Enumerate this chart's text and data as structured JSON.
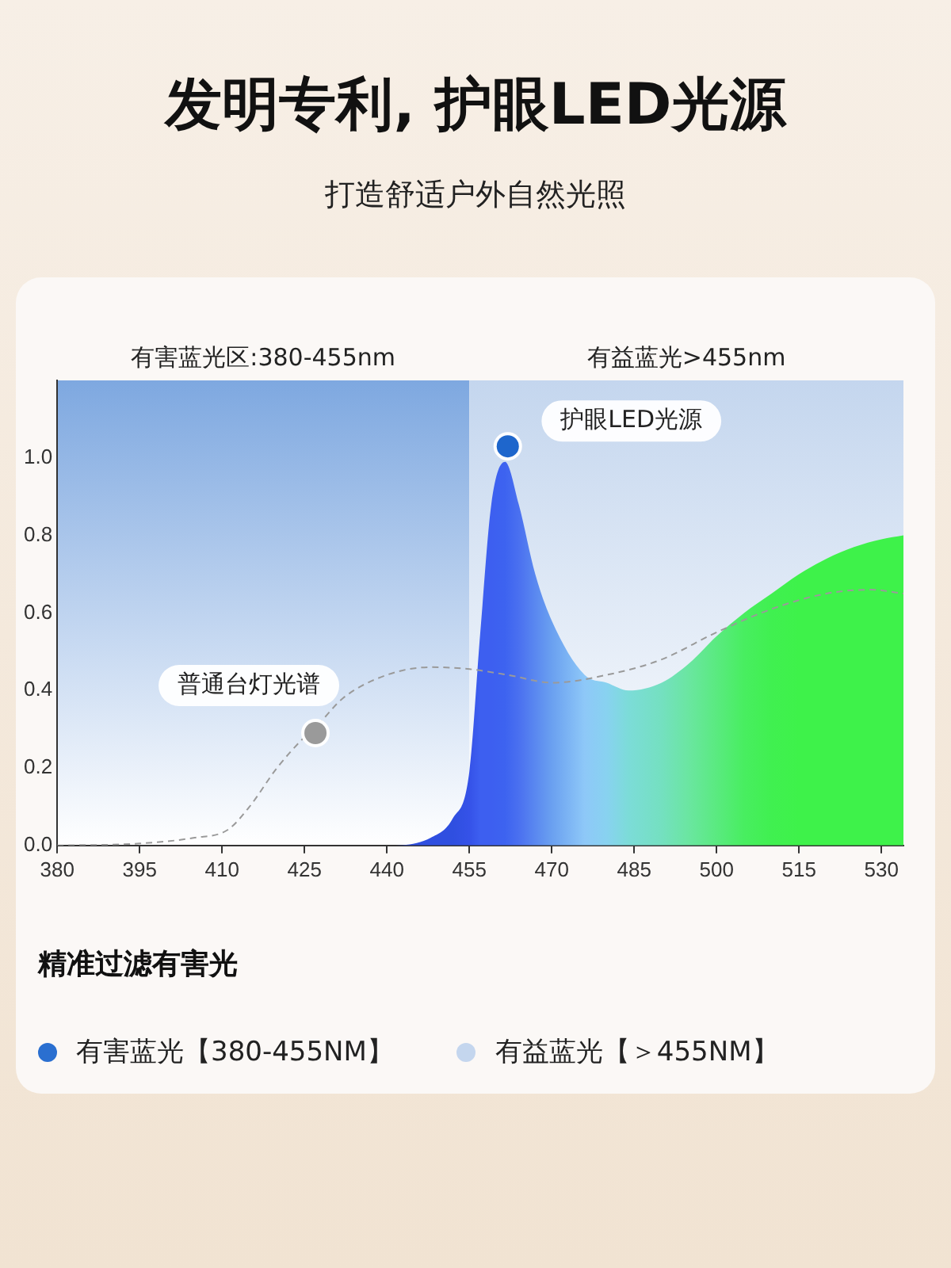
{
  "chart_data": {
    "type": "line",
    "title": "发明专利, 护眼LED光源",
    "subtitle": "打造舒适户外自然光照",
    "annotations": [
      {
        "text": "护眼LED光源",
        "x": 462,
        "y": 1.03
      },
      {
        "text": "普通台灯光谱",
        "x": 427,
        "y": 0.29
      },
      "精准过滤有害光",
      "有害蓝光【380-455NM】",
      "有益蓝光【＞455NM】"
    ],
    "series": [
      {
        "type": "area",
        "x": [
          380,
          440,
          448,
          452,
          455,
          457,
          459,
          461.5,
          464,
          467,
          470,
          476,
          480,
          484,
          490,
          495,
          500,
          505,
          510,
          515,
          520,
          525,
          530,
          534
        ],
        "values": [
          0,
          0,
          0.02,
          0.07,
          0.19,
          0.55,
          0.88,
          0.99,
          0.88,
          0.7,
          0.58,
          0.44,
          0.42,
          0.4,
          0.42,
          0.47,
          0.54,
          0.6,
          0.65,
          0.7,
          0.74,
          0.77,
          0.79,
          0.8
        ],
        "colors": [
          "#2f4fe0",
          "#2f4fe0",
          "#2f4fe0",
          "#2f4fe0",
          "#3552e8",
          "#3d5ff0",
          "#3d5ff0",
          "#3d63f0",
          "#4a70f0",
          "#5a88f0",
          "#6aa0f0",
          "#8ec8f8",
          "#88d2f0",
          "#7cdcd8",
          "#74e0c0",
          "#6ae6a0",
          "#5aea80",
          "#48ee60",
          "#40f050",
          "#3ef24a",
          "#3ef24a",
          "#3ef24a",
          "#3ef24a",
          "#3ef24a"
        ]
      },
      {
        "type": "line",
        "color": "#9a9a9a",
        "line_style": "dashed",
        "x": [
          380,
          395,
          405,
          411,
          415,
          420,
          425,
          428,
          432,
          440,
          448,
          455,
          462,
          470,
          480,
          490,
          500,
          510,
          520,
          528,
          534
        ],
        "values": [
          0,
          0.005,
          0.02,
          0.04,
          0.1,
          0.2,
          0.28,
          0.32,
          0.38,
          0.44,
          0.46,
          0.455,
          0.44,
          0.42,
          0.44,
          0.48,
          0.55,
          0.61,
          0.65,
          0.66,
          0.65
        ]
      }
    ],
    "bands": [
      {
        "axis": "x",
        "from": 380,
        "to": 455,
        "label": "有害蓝光区:380-455nm",
        "color": "#7ea8e0"
      },
      {
        "axis": "x",
        "from": 455,
        "to": 534,
        "label": "有益蓝光>455nm",
        "color": "#c4d6ee"
      }
    ],
    "xlim": [
      380,
      534
    ],
    "xticks": [
      380,
      395,
      410,
      425,
      440,
      455,
      470,
      485,
      500,
      515,
      530
    ],
    "ylim": [
      0,
      1.2
    ],
    "yticks": [
      {
        "value": 0,
        "label": "0.0"
      },
      {
        "value": 0.2,
        "label": "0.2"
      },
      {
        "value": 0.4,
        "label": "0.4"
      },
      {
        "value": 0.6,
        "label": "0.6"
      },
      {
        "value": 0.8,
        "label": "0.8"
      },
      {
        "value": 1,
        "label": "1.0"
      }
    ],
    "grid": false
  }
}
